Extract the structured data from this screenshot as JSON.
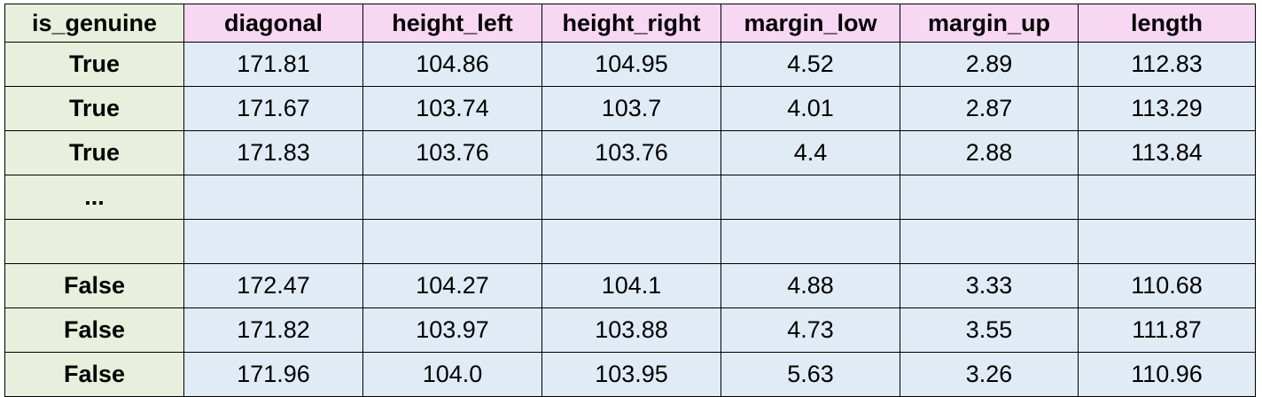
{
  "table": {
    "headers": [
      "is_genuine",
      "diagonal",
      "height_left",
      "height_right",
      "margin_low",
      "margin_up",
      "length"
    ],
    "rows": [
      [
        "True",
        "171.81",
        "104.86",
        "104.95",
        "4.52",
        "2.89",
        "112.83"
      ],
      [
        "True",
        "171.67",
        "103.74",
        "103.7",
        "4.01",
        "2.87",
        "113.29"
      ],
      [
        "True",
        "171.83",
        "103.76",
        "103.76",
        "4.4",
        "2.88",
        "113.84"
      ],
      [
        "...",
        "",
        "",
        "",
        "",
        "",
        ""
      ],
      [
        "",
        "",
        "",
        "",
        "",
        "",
        ""
      ],
      [
        "False",
        "172.47",
        "104.27",
        "104.1",
        "4.88",
        "3.33",
        "110.68"
      ],
      [
        "False",
        "171.82",
        "103.97",
        "103.88",
        "4.73",
        "3.55",
        "111.87"
      ],
      [
        "False",
        "171.96",
        "104.0",
        "103.95",
        "5.63",
        "3.26",
        "110.96"
      ]
    ]
  },
  "colors": {
    "first_column_bg": "#e8efdc",
    "header_bg": "#f8d7f3",
    "cell_bg": "#e0ebf6",
    "border": "#000000"
  }
}
